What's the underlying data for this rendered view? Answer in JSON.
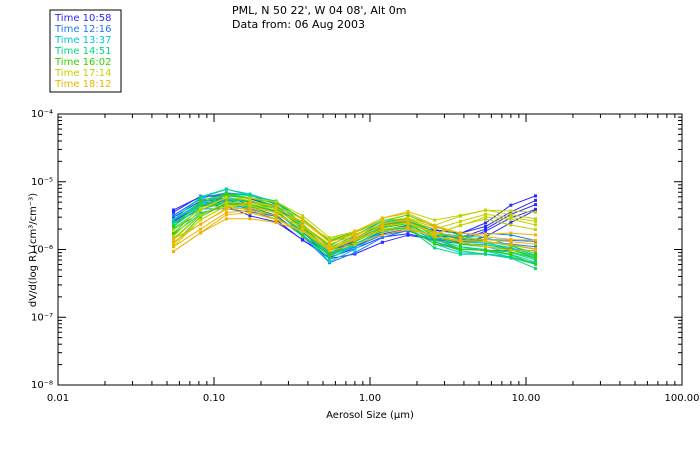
{
  "header": {
    "location": "PML, N 50 22', W 04 08', Alt 0m",
    "date": "Data from: 06 Aug 2003"
  },
  "chart_data": {
    "type": "line",
    "title": "PML, N 50 22', W 04 08', Alt 0m",
    "subtitle": "Data from: 06 Aug 2003",
    "xlabel": "Aerosol Size (μm)",
    "ylabel": "dV/d(log R) (cm³/cm⁻³)",
    "xscale": "log",
    "yscale": "log",
    "xlim": [
      0.01,
      100
    ],
    "ylim": [
      1e-08,
      0.0001
    ],
    "x_tick_labels": [
      "0.01",
      "0.10",
      "1.00",
      "10.00",
      "100.00"
    ],
    "y_tick_labels": [
      "10⁻⁸",
      "10⁻⁷",
      "10⁻⁶",
      "10⁻⁵",
      "10⁻⁴"
    ],
    "legend_position": "top-left",
    "x": [
      0.055,
      0.082,
      0.12,
      0.17,
      0.25,
      0.37,
      0.55,
      0.8,
      1.2,
      1.75,
      2.6,
      3.8,
      5.5,
      8,
      11.5
    ],
    "series": [
      {
        "name": "Time 10:58",
        "color": "#2828ff",
        "values": [
          3e-06,
          5.2e-06,
          5.5e-06,
          4.2e-06,
          3.2e-06,
          1.6e-06,
          8.5e-07,
          1.1e-06,
          1.7e-06,
          2e-06,
          1.6e-06,
          1.5e-06,
          2e-06,
          3.3e-06,
          4.6e-06
        ]
      },
      {
        "name": "Time 12:16",
        "color": "#1e78ff",
        "values": [
          2.7e-06,
          4.9e-06,
          5.3e-06,
          4.6e-06,
          3.6e-06,
          1.8e-06,
          8e-07,
          1.2e-06,
          1.9e-06,
          2.2e-06,
          1.5e-06,
          1.3e-06,
          1.3e-06,
          1.2e-06,
          1.1e-06
        ]
      },
      {
        "name": "Time 13:37",
        "color": "#00c8d7",
        "values": [
          2.4e-06,
          4.6e-06,
          5.6e-06,
          5e-06,
          4.2e-06,
          2e-06,
          8.8e-07,
          1.3e-06,
          2.1e-06,
          2.4e-06,
          1.5e-06,
          1.2e-06,
          1.1e-06,
          9e-07,
          7e-07
        ]
      },
      {
        "name": "Time 14:51",
        "color": "#00d782",
        "values": [
          2.2e-06,
          4.4e-06,
          5.8e-06,
          5.2e-06,
          4.5e-06,
          2.2e-06,
          9.5e-07,
          1.4e-06,
          2.2e-06,
          2.5e-06,
          1.4e-06,
          1.1e-06,
          1e-06,
          8.5e-07,
          6.5e-07
        ]
      },
      {
        "name": "Time 16:02",
        "color": "#32d200",
        "values": [
          1.6e-06,
          3.8e-06,
          5.4e-06,
          5e-06,
          4e-06,
          2.1e-06,
          1e-06,
          1.5e-06,
          2.3e-06,
          2.6e-06,
          1.6e-06,
          1.2e-06,
          1.1e-06,
          1e-06,
          8e-07
        ]
      },
      {
        "name": "Time 17:14",
        "color": "#c3d200",
        "values": [
          1.4e-06,
          3.2e-06,
          5e-06,
          4.8e-06,
          3.8e-06,
          2.3e-06,
          1.2e-06,
          1.6e-06,
          2.4e-06,
          2.7e-06,
          2e-06,
          2.6e-06,
          3.3e-06,
          3e-06,
          2.6e-06
        ]
      },
      {
        "name": "Time 18:12",
        "color": "#f0b400",
        "values": [
          1.1e-06,
          2e-06,
          3.5e-06,
          3.8e-06,
          3.2e-06,
          2.2e-06,
          1.1e-06,
          1.5e-06,
          2.2e-06,
          2.5e-06,
          1.8e-06,
          1.5e-06,
          1.4e-06,
          1.3e-06,
          1.2e-06
        ]
      }
    ]
  }
}
